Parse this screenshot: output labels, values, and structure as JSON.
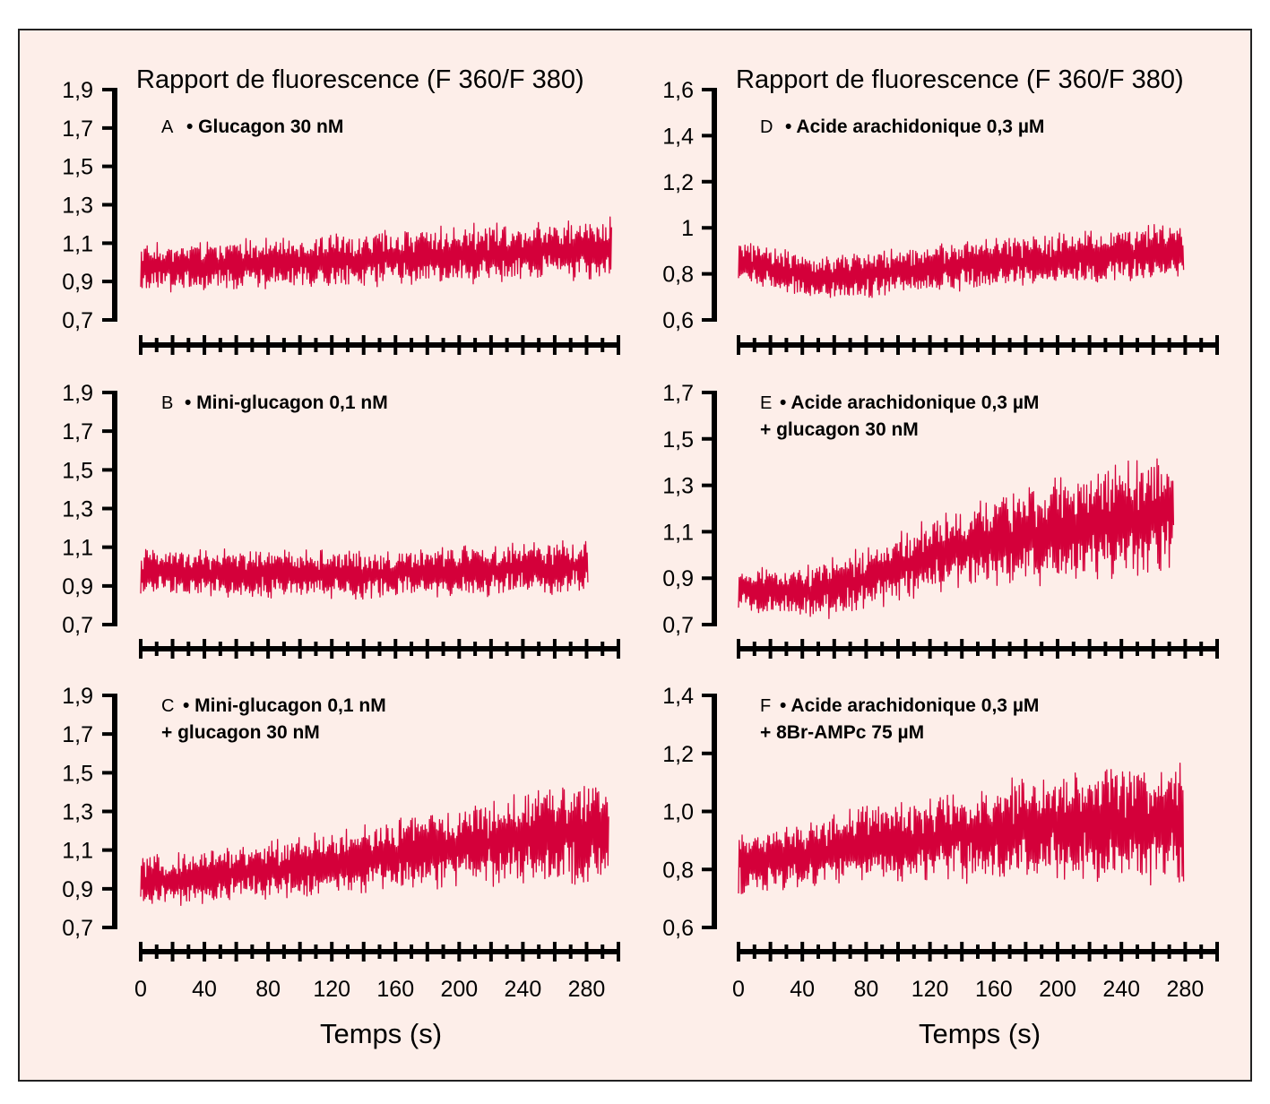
{
  "colors": {
    "background": "#fdeee9",
    "border": "#222222",
    "trace": "#d4003a",
    "axis": "#000000"
  },
  "y_axis_title": "Rapport de fluorescence (F 360/F 380)",
  "x_axis_title": "Temps (s)",
  "chart_data": [
    {
      "id": "A",
      "type": "line",
      "letter": "A",
      "condition_lines": [
        "• Glucagon 30 nM"
      ],
      "ylabel": "Rapport de fluorescence (F 360/F 380)",
      "xlabel": "",
      "xlim": [
        0,
        300
      ],
      "ylim": [
        0.7,
        1.9
      ],
      "y_ticks": [
        "0,7",
        "0,9",
        "1,1",
        "1,3",
        "1,5",
        "1,7",
        "1,9"
      ],
      "x_ticks": [],
      "series": [
        {
          "x_range": [
            0,
            296
          ],
          "baseline": [
            [
              0,
              0.97
            ],
            [
              100,
              1.0
            ],
            [
              200,
              1.04
            ],
            [
              296,
              1.08
            ]
          ],
          "amplitude": [
            [
              0,
              0.2
            ],
            [
              296,
              0.27
            ]
          ]
        }
      ]
    },
    {
      "id": "B",
      "type": "line",
      "letter": "B",
      "condition_lines": [
        "• Mini-glucagon 0,1 nM"
      ],
      "ylabel": "",
      "xlabel": "",
      "xlim": [
        0,
        300
      ],
      "ylim": [
        0.7,
        1.9
      ],
      "y_ticks": [
        "0,7",
        "0,9",
        "1,1",
        "1,3",
        "1,5",
        "1,7",
        "1,9"
      ],
      "x_ticks": [],
      "series": [
        {
          "x_range": [
            0,
            281
          ],
          "baseline": [
            [
              0,
              0.97
            ],
            [
              140,
              0.96
            ],
            [
              281,
              1.0
            ]
          ],
          "amplitude": [
            [
              0,
              0.2
            ],
            [
              281,
              0.22
            ]
          ]
        }
      ]
    },
    {
      "id": "C",
      "type": "line",
      "letter": "C",
      "condition_lines": [
        "• Mini-glucagon 0,1 nM",
        "+ glucagon 30 nM"
      ],
      "ylabel": "",
      "xlabel": "",
      "xlim": [
        0,
        300
      ],
      "ylim": [
        0.7,
        1.9
      ],
      "y_ticks": [
        "0,7",
        "0,9",
        "1,1",
        "1,3",
        "1,5",
        "1,7",
        "1,9"
      ],
      "x_ticks": [
        "0",
        "40",
        "80",
        "120",
        "160",
        "200",
        "240",
        "280"
      ],
      "series": [
        {
          "x_range": [
            0,
            294
          ],
          "baseline": [
            [
              0,
              0.94
            ],
            [
              40,
              0.96
            ],
            [
              120,
              1.03
            ],
            [
              200,
              1.12
            ],
            [
              294,
              1.22
            ]
          ],
          "amplitude": [
            [
              0,
              0.2
            ],
            [
              150,
              0.3
            ],
            [
              294,
              0.45
            ]
          ]
        }
      ]
    },
    {
      "id": "D",
      "type": "line",
      "letter": "D",
      "condition_lines": [
        "• Acide arachidonique  0,3 µM"
      ],
      "ylabel": "Rapport de fluorescence (F 360/F 380)",
      "xlabel": "",
      "xlim": [
        0,
        300
      ],
      "ylim": [
        0.6,
        1.6
      ],
      "y_ticks": [
        "0,6",
        "0,8",
        "1",
        "1,2",
        "1,4",
        "1,6"
      ],
      "x_ticks": [],
      "series": [
        {
          "x_range": [
            0,
            279
          ],
          "baseline": [
            [
              0,
              0.85
            ],
            [
              50,
              0.78
            ],
            [
              150,
              0.84
            ],
            [
              279,
              0.9
            ]
          ],
          "amplitude": [
            [
              0,
              0.15
            ],
            [
              279,
              0.2
            ]
          ]
        }
      ]
    },
    {
      "id": "E",
      "type": "line",
      "letter": "E",
      "condition_lines": [
        "• Acide arachidonique 0,3 µM",
        "+ glucagon 30 nM"
      ],
      "ylabel": "",
      "xlabel": "",
      "xlim": [
        0,
        300
      ],
      "ylim": [
        0.7,
        1.7
      ],
      "y_ticks": [
        "0,7",
        "0,9",
        "1,1",
        "1,3",
        "1,5",
        "1,7"
      ],
      "x_ticks": [],
      "series": [
        {
          "x_range": [
            0,
            273
          ],
          "baseline": [
            [
              0,
              0.85
            ],
            [
              50,
              0.84
            ],
            [
              150,
              1.05
            ],
            [
              273,
              1.18
            ]
          ],
          "amplitude": [
            [
              0,
              0.15
            ],
            [
              100,
              0.25
            ],
            [
              273,
              0.45
            ]
          ]
        }
      ]
    },
    {
      "id": "F",
      "type": "line",
      "letter": "F",
      "condition_lines": [
        "• Acide arachidonique 0,3 µM",
        "+ 8Br-AMPc 75 µM"
      ],
      "ylabel": "",
      "xlabel": "",
      "xlim": [
        0,
        300
      ],
      "ylim": [
        0.6,
        1.4
      ],
      "y_ticks": [
        "0,6",
        "0,8",
        "1,0",
        "1,2",
        "1,4"
      ],
      "x_ticks": [
        "0",
        "40",
        "80",
        "120",
        "160",
        "200",
        "240",
        "280"
      ],
      "series": [
        {
          "x_range": [
            0,
            279
          ],
          "baseline": [
            [
              0,
              0.82
            ],
            [
              80,
              0.88
            ],
            [
              180,
              0.94
            ],
            [
              279,
              0.96
            ]
          ],
          "amplitude": [
            [
              0,
              0.18
            ],
            [
              279,
              0.35
            ]
          ]
        }
      ]
    }
  ]
}
